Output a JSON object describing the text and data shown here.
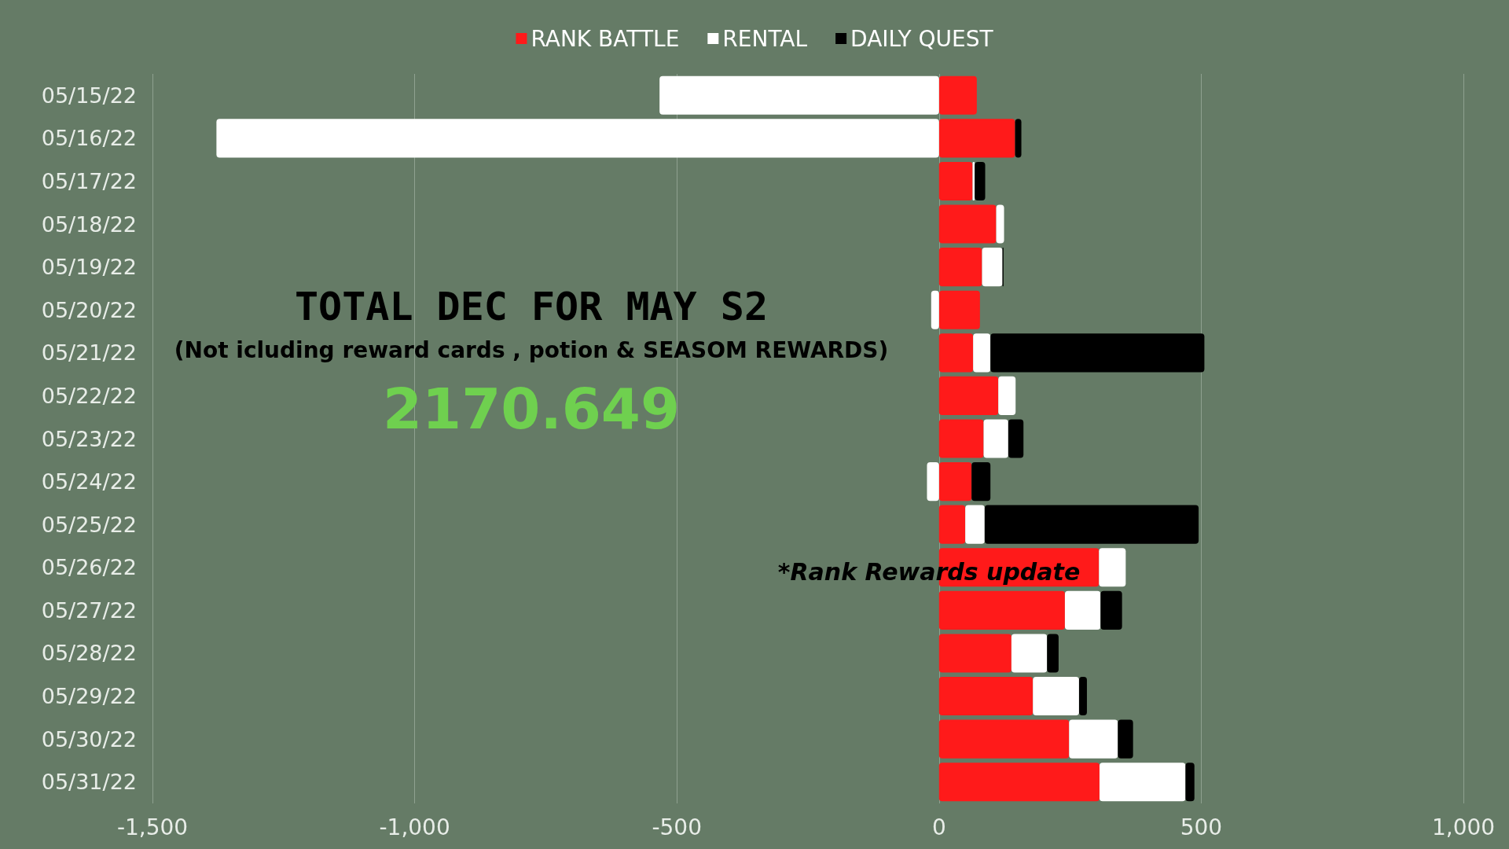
{
  "chart_data": {
    "type": "bar",
    "orientation": "horizontal",
    "stacked": true,
    "categories": [
      "05/15/22",
      "05/16/22",
      "05/17/22",
      "05/18/22",
      "05/19/22",
      "05/20/22",
      "05/21/22",
      "05/22/22",
      "05/23/22",
      "05/24/22",
      "05/25/22",
      "05/26/22",
      "05/27/22",
      "05/28/22",
      "05/29/22",
      "05/30/22",
      "05/31/22"
    ],
    "series": [
      {
        "name": "RANK BATTLE",
        "color": "#ff1a1a",
        "values": [
          72,
          145,
          64,
          109,
          82,
          78,
          65,
          113,
          85,
          62,
          50,
          305,
          240,
          138,
          179,
          248,
          306
        ]
      },
      {
        "name": "RENTAL",
        "color": "#ffffff",
        "values": [
          -533,
          -1378,
          4,
          15,
          39,
          -15,
          33,
          33,
          47,
          -23,
          37,
          51,
          68,
          68,
          88,
          93,
          164
        ]
      },
      {
        "name": "DAILY QUEST",
        "color": "#000000",
        "values": [
          null,
          12,
          20,
          null,
          2,
          null,
          408,
          null,
          29,
          36,
          408,
          null,
          41,
          22,
          15,
          29,
          17
        ]
      }
    ],
    "xlim": [
      -1500,
      1000
    ],
    "xticks": [
      {
        "value": -1500,
        "label": "-1,500"
      },
      {
        "value": -1000,
        "label": "-1,000"
      },
      -500,
      0,
      500,
      {
        "value": 1000,
        "label": "1,000"
      }
    ],
    "grid": "x",
    "legend": "top",
    "annotations": [
      "TOTAL DEC FOR MAY S2",
      "(Not icluding reward cards , potion & SEASOM REWARDS)",
      "2170.649",
      "*Rank Rewards update"
    ]
  }
}
